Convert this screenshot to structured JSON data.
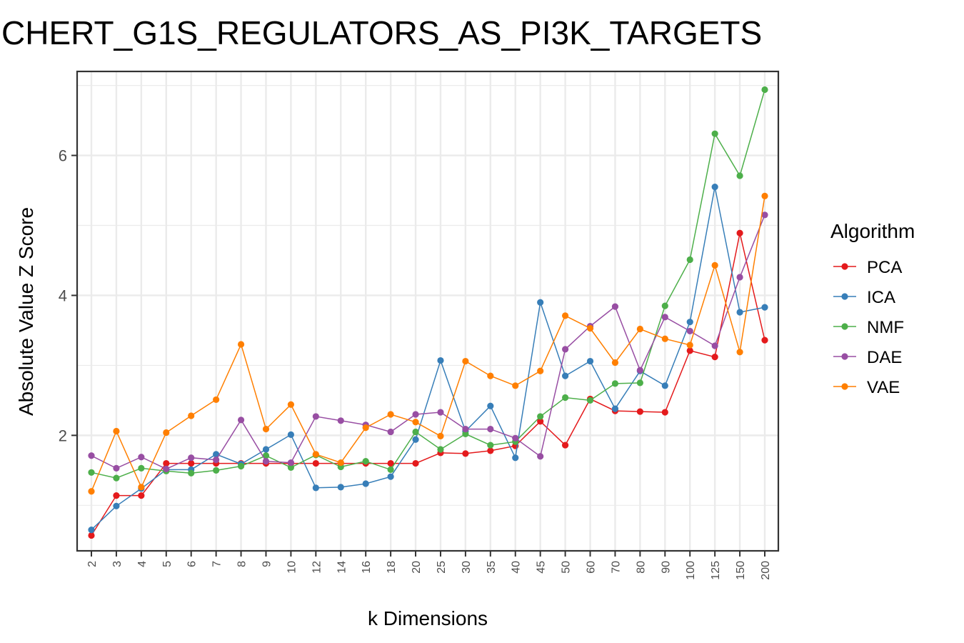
{
  "chart_data": {
    "type": "line",
    "title": "CHERT_G1S_REGULATORS_AS_PI3K_TARGETS",
    "xlabel": "k Dimensions",
    "ylabel": "Absolute Value Z Score",
    "ylim": [
      0.35,
      7.2
    ],
    "yticks": [
      2,
      4,
      6
    ],
    "grid": true,
    "legend": {
      "title": "Algorithm",
      "placement": "right"
    },
    "categories": [
      "2",
      "3",
      "4",
      "5",
      "6",
      "7",
      "8",
      "9",
      "10",
      "12",
      "14",
      "16",
      "18",
      "20",
      "25",
      "30",
      "35",
      "40",
      "45",
      "50",
      "60",
      "70",
      "80",
      "90",
      "100",
      "125",
      "150",
      "200"
    ],
    "series": [
      {
        "name": "PCA",
        "color": "#e41a1c",
        "values": [
          0.57,
          1.14,
          1.14,
          1.6,
          1.6,
          1.6,
          1.6,
          1.6,
          1.6,
          1.6,
          1.6,
          1.6,
          1.6,
          1.6,
          1.75,
          1.74,
          1.78,
          1.85,
          2.2,
          1.86,
          2.52,
          2.35,
          2.34,
          2.33,
          3.21,
          3.12,
          4.89,
          3.36
        ]
      },
      {
        "name": "ICA",
        "color": "#377eb8",
        "values": [
          0.65,
          0.99,
          1.24,
          1.51,
          1.51,
          1.73,
          1.59,
          1.8,
          2.01,
          1.25,
          1.26,
          1.31,
          1.41,
          1.94,
          3.07,
          2.06,
          2.42,
          1.68,
          3.9,
          2.85,
          3.06,
          2.38,
          2.92,
          2.71,
          3.62,
          5.55,
          3.76,
          3.83
        ]
      },
      {
        "name": "NMF",
        "color": "#4daf4a",
        "values": [
          1.47,
          1.39,
          1.53,
          1.49,
          1.46,
          1.5,
          1.56,
          1.71,
          1.54,
          1.72,
          1.55,
          1.63,
          1.51,
          2.05,
          1.8,
          2.02,
          1.86,
          1.91,
          2.27,
          2.54,
          2.5,
          2.74,
          2.75,
          3.85,
          4.51,
          6.31,
          5.71,
          6.94
        ]
      },
      {
        "name": "DAE",
        "color": "#984ea3",
        "values": [
          1.71,
          1.53,
          1.69,
          1.52,
          1.68,
          1.65,
          2.22,
          1.63,
          1.61,
          2.27,
          2.21,
          2.15,
          2.05,
          2.3,
          2.33,
          2.09,
          2.09,
          1.96,
          1.7,
          3.23,
          3.56,
          3.84,
          2.93,
          3.69,
          3.49,
          3.28,
          4.26,
          5.15
        ]
      },
      {
        "name": "VAE",
        "color": "#ff7f00",
        "values": [
          1.2,
          2.06,
          1.26,
          2.04,
          2.28,
          2.51,
          3.3,
          2.09,
          2.44,
          1.73,
          1.61,
          2.11,
          2.3,
          2.19,
          1.99,
          3.06,
          2.85,
          2.71,
          2.92,
          3.71,
          3.53,
          3.04,
          3.52,
          3.38,
          3.29,
          4.43,
          3.19,
          5.42
        ]
      }
    ]
  }
}
